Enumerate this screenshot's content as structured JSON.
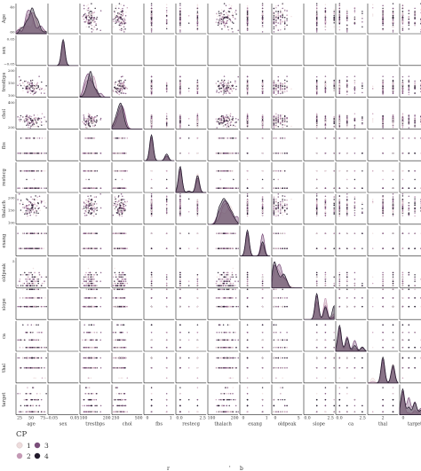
{
  "chart_data": {
    "type": "scatter",
    "variables": [
      "age",
      "sex",
      "trestbps",
      "chol",
      "fbs",
      "restecg",
      "thalach",
      "exang",
      "oldpeak",
      "slope",
      "ca",
      "thal",
      "target"
    ],
    "row_labels": [
      "Age",
      "sex",
      "trestbps",
      "chol",
      "fbs",
      "restecg",
      "thalach",
      "exang",
      "oldpeak",
      "slope",
      "ca",
      "thal",
      "target"
    ],
    "x_tick_labels": {
      "age": [
        "25",
        "50",
        "75"
      ],
      "sex": [
        "−0.05",
        "0.05"
      ],
      "trestbps": [
        "100",
        "200"
      ],
      "chol": [
        "250",
        "500"
      ],
      "fbs": [
        "0",
        "1"
      ],
      "restecg": [
        "0.0",
        "2.5"
      ],
      "thalach": [
        "100",
        "200"
      ],
      "exang": [
        "0",
        "1"
      ],
      "oldpeak": [
        "0",
        "5"
      ],
      "slope": [
        "0.0",
        "2.5"
      ],
      "ca": [
        "0.0",
        "2.5"
      ],
      "thal": [
        "2"
      ],
      "target": [
        "0",
        "5"
      ]
    },
    "y_tick_labels": {
      "age": [
        "40",
        "60"
      ],
      "sex": [
        "0.05",
        "−0.05"
      ],
      "trestbps": [
        "200",
        "150",
        "100"
      ],
      "chol": [
        "400",
        "200"
      ],
      "fbs": [],
      "restecg": [],
      "thalach": [
        "200",
        "150",
        "100"
      ],
      "exang": [],
      "oldpeak": [
        "5"
      ],
      "slope": [],
      "ca": [],
      "thal": [],
      "target": []
    },
    "ranges": {
      "age": [
        25,
        80
      ],
      "sex": [
        -0.08,
        0.08
      ],
      "trestbps": [
        90,
        210
      ],
      "chol": [
        120,
        580
      ],
      "fbs": [
        -0.5,
        1.5
      ],
      "restecg": [
        -0.5,
        3
      ],
      "thalach": [
        70,
        210
      ],
      "exang": [
        -0.5,
        1.5
      ],
      "oldpeak": [
        -0.5,
        6.5
      ],
      "slope": [
        -0.5,
        3
      ],
      "ca": [
        -0.5,
        3.5
      ],
      "thal": [
        0.5,
        3.5
      ],
      "target": [
        -0.5,
        4.5
      ]
    },
    "distributions": {
      "age": {
        "mean": 54,
        "sd": 9
      },
      "trestbps": {
        "mean": 132,
        "sd": 17
      },
      "chol": {
        "mean": 247,
        "sd": 50
      },
      "thalach": {
        "mean": 150,
        "sd": 22
      },
      "oldpeak": {
        "levels": [
          0,
          0.5,
          1,
          1.5,
          2,
          2.5,
          3,
          4
        ],
        "weights": [
          5,
          2,
          2,
          1.5,
          1.5,
          1,
          1,
          0.5
        ]
      },
      "fbs": {
        "levels": [
          0,
          1
        ],
        "weights": [
          85,
          15
        ]
      },
      "restecg": {
        "levels": [
          0,
          1,
          2
        ],
        "weights": [
          50,
          2,
          48
        ]
      },
      "exang": {
        "levels": [
          0,
          1
        ],
        "weights": [
          67,
          33
        ]
      },
      "slope": {
        "levels": [
          1,
          2,
          3
        ],
        "weights": [
          46,
          46,
          8
        ]
      },
      "ca": {
        "levels": [
          0,
          1,
          2,
          3
        ],
        "weights": [
          58,
          22,
          13,
          7
        ]
      },
      "thal": {
        "levels": [
          1,
          2,
          3
        ],
        "weights": [
          6,
          55,
          39
        ]
      },
      "target": {
        "levels": [
          0,
          1,
          2,
          3,
          4
        ],
        "weights": [
          54,
          18,
          12,
          12,
          4
        ]
      },
      "sex": {
        "levels": [
          0
        ],
        "weights": [
          1
        ]
      }
    },
    "legend": {
      "title": "CP",
      "entries": [
        {
          "label": "1",
          "color": "#eddcdc"
        },
        {
          "label": "2",
          "color": "#c49ab5"
        },
        {
          "label": "3",
          "color": "#7a4e7a"
        },
        {
          "label": "4",
          "color": "#221a2b"
        }
      ],
      "placement": "bottom-left"
    },
    "grid": false,
    "diagonal": "kde",
    "hue": "CP"
  },
  "footer": {
    "fragments": [
      "r",
      "'",
      "b"
    ]
  }
}
